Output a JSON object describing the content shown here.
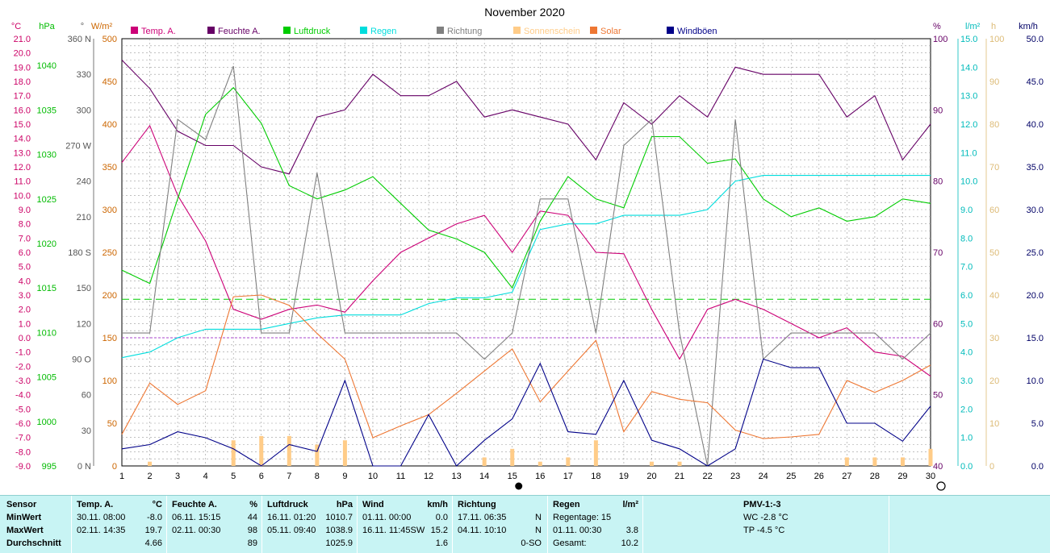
{
  "chart_data": {
    "type": "line",
    "title": "November 2020",
    "x": [
      1,
      2,
      3,
      4,
      5,
      6,
      7,
      8,
      9,
      10,
      11,
      12,
      13,
      14,
      15,
      16,
      17,
      18,
      19,
      20,
      21,
      22,
      23,
      24,
      25,
      26,
      27,
      28,
      29,
      30
    ],
    "unit_labels": {
      "temp": "°C",
      "pressure": "hPa",
      "direction": "°",
      "solar": "W/m²",
      "humidity": "%",
      "rain": "l/m²",
      "sunshine": "h",
      "wind": "km/h"
    },
    "axes": {
      "temp": {
        "min": -9.0,
        "max": 21.0,
        "ticks": [
          "21.0",
          "20.0",
          "19.0",
          "18.0",
          "17.0",
          "16.0",
          "15.0",
          "14.0",
          "13.0",
          "12.0",
          "11.0",
          "10.0",
          "9.0",
          "8.0",
          "7.0",
          "6.0",
          "5.0",
          "4.0",
          "3.0",
          "2.0",
          "1.0",
          "0.0",
          "-1.0",
          "-2.0",
          "-3.0",
          "-4.0",
          "-5.0",
          "-6.0",
          "-7.0",
          "-8.0",
          "-9.0"
        ]
      },
      "pressure": {
        "min": 995,
        "max": 1043,
        "ticks": [
          "1040",
          "1035",
          "1030",
          "1025",
          "1020",
          "1015",
          "1010",
          "1005",
          "1000",
          "995"
        ]
      },
      "direction": {
        "min": 0,
        "max": 360,
        "ticks": [
          "360 N",
          "330",
          "300",
          "270 W",
          "240",
          "210",
          "180 S",
          "150",
          "120",
          "90 O",
          "60",
          "30",
          "0 N"
        ]
      },
      "solar": {
        "min": 0,
        "max": 500,
        "ticks": [
          "500",
          "450",
          "400",
          "350",
          "300",
          "250",
          "200",
          "150",
          "100",
          "50",
          "0"
        ]
      },
      "humidity": {
        "min": 40,
        "max": 100,
        "ticks": [
          "100",
          "90",
          "80",
          "70",
          "60",
          "50",
          "40"
        ]
      },
      "rain": {
        "min": 0,
        "max": 15,
        "ticks": [
          "15.0",
          "14.0",
          "13.0",
          "12.0",
          "11.0",
          "10.0",
          "9.0",
          "8.0",
          "7.0",
          "6.0",
          "5.0",
          "4.0",
          "3.0",
          "2.0",
          "1.0",
          "0.0"
        ]
      },
      "sunshine": {
        "min": 0,
        "max": 100,
        "ticks": [
          "100",
          "90",
          "80",
          "70",
          "60",
          "50",
          "40",
          "30",
          "20",
          "10",
          "0"
        ]
      },
      "wind": {
        "min": 0,
        "max": 50,
        "ticks": [
          "50.0",
          "45.0",
          "40.0",
          "35.0",
          "30.0",
          "25.0",
          "20.0",
          "15.0",
          "10.0",
          "5.0",
          "0.0"
        ]
      }
    },
    "series": [
      {
        "name": "Temp. A.",
        "axis": "temp",
        "color": "#cc0077",
        "values": [
          12.3,
          14.9,
          10.0,
          6.8,
          2.0,
          1.3,
          2.0,
          2.3,
          1.8,
          4.0,
          6.0,
          7.0,
          8.0,
          8.6,
          6.0,
          8.9,
          8.6,
          6.0,
          5.9,
          2.0,
          -1.5,
          2.0,
          2.7,
          2.0,
          1.0,
          0.0,
          0.7,
          -1.0,
          -1.3,
          -2.7
        ]
      },
      {
        "name": "Feuchte A.",
        "axis": "humidity",
        "color": "#660066",
        "values": [
          97,
          93,
          87,
          85,
          85,
          82,
          81,
          89,
          90,
          95,
          92,
          92,
          94,
          89,
          90,
          89,
          88,
          83,
          91,
          88,
          92,
          89,
          96,
          95,
          95,
          95,
          89,
          92,
          83,
          88
        ]
      },
      {
        "name": "Luftdruck",
        "axis": "pressure",
        "color": "#00cc00",
        "values": [
          1017,
          1015.5,
          1025,
          1034.5,
          1037.5,
          1033.5,
          1026.5,
          1025,
          1026,
          1027.5,
          1024.5,
          1021.5,
          1020.5,
          1019,
          1015,
          1022.5,
          1027.5,
          1025,
          1024,
          1032,
          1032,
          1029,
          1029.5,
          1025,
          1023,
          1024,
          1022.5,
          1023,
          1025,
          1024.5
        ]
      },
      {
        "name": "Regen",
        "axis": "rain",
        "color": "#00dddd",
        "values": [
          3.8,
          4.0,
          4.5,
          4.8,
          4.8,
          4.8,
          5.0,
          5.2,
          5.3,
          5.3,
          5.3,
          5.7,
          5.9,
          5.9,
          6.1,
          8.3,
          8.5,
          8.5,
          8.8,
          8.8,
          8.8,
          9.0,
          10.0,
          10.2,
          10.2,
          10.2,
          10.2,
          10.2,
          10.2,
          10.2
        ]
      },
      {
        "name": "Richtung",
        "axis": "direction",
        "color": "#808080",
        "values": [
          112,
          112,
          292,
          275,
          337,
          112,
          112,
          247,
          112,
          112,
          112,
          112,
          112,
          90,
          112,
          225,
          225,
          112,
          270,
          292,
          112,
          0,
          292,
          90,
          112,
          112,
          112,
          112,
          90,
          112
        ]
      },
      {
        "name": "Sonnenschein",
        "axis": "sunshine",
        "color": "#ffcc88",
        "kind": "bar",
        "values": [
          0,
          1,
          0,
          0,
          6,
          7,
          7,
          5,
          6,
          0,
          0,
          0,
          0,
          2,
          4,
          1,
          2,
          6,
          0,
          1,
          1,
          0,
          0,
          0,
          0,
          0,
          2,
          2,
          2,
          4
        ]
      },
      {
        "name": "Solar",
        "axis": "solar",
        "color": "#ee7733",
        "values": [
          37,
          97,
          72,
          88,
          198,
          200,
          188,
          155,
          125,
          33,
          47,
          60,
          85,
          111,
          137,
          75,
          111,
          147,
          40,
          87,
          78,
          74,
          42,
          32,
          34,
          37,
          100,
          86,
          100,
          118
        ]
      },
      {
        "name": "Windböen",
        "axis": "wind",
        "color": "#000088",
        "values": [
          2.0,
          2.5,
          4.0,
          3.3,
          2.0,
          0.0,
          2.5,
          1.7,
          10.0,
          0.0,
          0.0,
          6.0,
          0.0,
          3.0,
          5.5,
          12.0,
          4.0,
          3.7,
          10.0,
          3.0,
          2.0,
          0.0,
          2.0,
          12.5,
          11.5,
          11.5,
          5.0,
          5.0,
          2.9,
          7.0
        ]
      }
    ],
    "reference_lines": [
      {
        "axis": "temp",
        "value": 0.0,
        "color": "#aa44cc"
      },
      {
        "axis": "temp",
        "value": 2.7,
        "color": "#00cc00"
      }
    ],
    "markers": {
      "full_moon_day": 15,
      "new_moon_day": 30
    },
    "grid": true
  },
  "table": {
    "row_labels": [
      "Sensor",
      "MinWert",
      "MaxWert",
      "Durchschnitt"
    ],
    "columns": [
      {
        "header": "Temp. A.",
        "unit": "°C",
        "rows": [
          [
            "30.11.  08:00",
            "-8.0"
          ],
          [
            "02.11.  14:35",
            "19.7"
          ],
          [
            "",
            "4.66"
          ]
        ]
      },
      {
        "header": "Feuchte A.",
        "unit": "%",
        "rows": [
          [
            "06.11.  15:15",
            "44"
          ],
          [
            "02.11.  00:30",
            "98"
          ],
          [
            "",
            "89"
          ]
        ]
      },
      {
        "header": "Luftdruck",
        "unit": "hPa",
        "rows": [
          [
            "16.11.  01:20",
            "1010.7"
          ],
          [
            "05.11.  09:40",
            "1038.9"
          ],
          [
            "",
            "1025.9"
          ]
        ]
      },
      {
        "header": "Wind",
        "unit": "km/h",
        "rows": [
          [
            "01.11.  00:00",
            "0.0"
          ],
          [
            "16.11.  11:45SW",
            "15.2"
          ],
          [
            "",
            "1.6"
          ]
        ]
      },
      {
        "header": "Richtung",
        "unit": "",
        "rows": [
          [
            "17.11.  06:35",
            "N"
          ],
          [
            "04.11.  10:10",
            "N"
          ],
          [
            "",
            "0-SO"
          ]
        ]
      },
      {
        "header": "Regen",
        "unit": "l/m²",
        "rows": [
          [
            "Regentage: 15",
            ""
          ],
          [
            "01.11.  00:30",
            "3.8"
          ],
          [
            "Gesamt:",
            "10.2"
          ]
        ]
      }
    ],
    "pmv": {
      "header": "PMV-1:-3",
      "lines": [
        "WC -2.8 °C",
        "TP -4.5 °C"
      ]
    }
  }
}
